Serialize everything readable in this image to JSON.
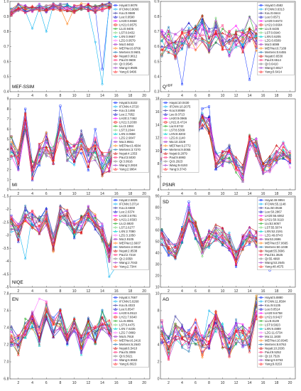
{
  "method_names": [
    "Hayat",
    "IFCNN",
    "Kou",
    "Lee",
    "LH20",
    "LH21",
    "Liu",
    "LST",
    "LXN",
    "LZG",
    "Ma",
    "MEFNet",
    "Mertens",
    "Nejati",
    "Paul",
    "Qi",
    "Wang",
    "Yang"
  ],
  "series_colors": [
    "#1f3fff",
    "#00b0f0",
    "#2c2c9a",
    "#0000c8",
    "#ff00ff",
    "#ee1111",
    "#22aa22",
    "#66cc66",
    "#00d0d0",
    "#ff66ff",
    "#aa44cc",
    "#ff7700",
    "#1f77b4",
    "#cc0000",
    "#ff4488",
    "#777777",
    "#9933cc",
    "#ff2222"
  ],
  "x_ticks": [
    2,
    4,
    6,
    8,
    10,
    12,
    14,
    16,
    18,
    20
  ],
  "chart_data": [
    {
      "type": "line",
      "metric": "MEF-SSIM",
      "corner_label": "MEF-SSIM",
      "corner": "bottom-left",
      "ylim": [
        0.4,
        1.0
      ],
      "yticks": [
        0.4,
        0.5,
        0.6,
        0.7,
        0.8,
        0.9,
        1.0
      ],
      "legend": "top-right",
      "legend_entries": [
        "Hayat:0.9078",
        "IFCNN:0.9066",
        "Kou:0.9588",
        "Lee:0.9590",
        "LH20:0.9658",
        "LH21:0.9575",
        "Liu:0.9405",
        "LST:0.9432",
        "LXN:0.9667",
        "LZG:0.9579",
        "Ma:0.9453",
        "MEFNet:0.8766",
        "Mertens:0.9601",
        "Nejati:0.9612",
        "Paul:0.9608",
        "Qi:0.9545",
        "Wang:0.9505",
        "Yang:0.9496"
      ],
      "base": [
        0.93,
        0.96,
        0.95,
        0.95,
        0.96,
        0.95,
        0.97,
        0.96,
        0.96,
        0.95,
        0.97,
        0.96,
        0.95,
        0.96,
        0.97,
        0.96,
        0.95,
        0.96,
        0.96,
        0.95
      ],
      "amp": 0.025,
      "spikes": [
        {
          "series": 1,
          "x": 4,
          "y": 0.82
        },
        {
          "series": 1,
          "x": 6,
          "y": 0.8
        },
        {
          "series": 1,
          "x": 13,
          "y": 0.73
        },
        {
          "series": 1,
          "x": 14,
          "y": 0.45
        },
        {
          "series": 0,
          "x": 14,
          "y": 0.55
        },
        {
          "series": 11,
          "x": 9,
          "y": 0.85
        }
      ]
    },
    {
      "type": "line",
      "metric": "Q^AB/F",
      "corner_label": "Q",
      "corner_sup": "AB/F",
      "corner": "bottom-left",
      "ylim": [
        0.3,
        0.9
      ],
      "yticks": [
        0.3,
        0.4,
        0.5,
        0.6,
        0.7,
        0.8,
        0.9
      ],
      "legend": "top-right",
      "legend_entries": [
        "Hayat:0.4582",
        "IFCNN:0.6313",
        "Kou:0.6644",
        "Lee:0.6571",
        "LH20:0.6673",
        "LH21:0.6604",
        "Liu:0.6435",
        "LST:0.6640",
        "LXN:0.6205",
        "LZG:0.6509",
        "Ma:0.6089",
        "MEFNet:0.7189",
        "Mertens:0.6455",
        "Nejati:0.6530",
        "Paul:0.6514",
        "Qi:0.6410",
        "Wang:0.6517",
        "Yang:0.6414"
      ],
      "base": [
        0.62,
        0.64,
        0.6,
        0.66,
        0.68,
        0.65,
        0.72,
        0.64,
        0.7,
        0.66,
        0.62,
        0.68,
        0.63,
        0.72,
        0.65,
        0.62,
        0.6,
        0.66,
        0.65,
        0.62
      ],
      "amp": 0.09,
      "spikes": [
        {
          "series": 0,
          "x": 4,
          "y": 0.35
        },
        {
          "series": 0,
          "x": 14,
          "y": 0.38
        },
        {
          "series": 0,
          "x": 19,
          "y": 0.42
        }
      ]
    },
    {
      "type": "line",
      "metric": "MI",
      "corner_label": "MI",
      "corner": "bottom-left",
      "ylim": [
        0,
        9
      ],
      "yticks": [
        0,
        1,
        2,
        3,
        4,
        5,
        6,
        7,
        8,
        9
      ],
      "legend": "top-right",
      "legend_entries": [
        "Hayat:5.5102",
        "IFCNN:4.3720",
        "Kou:3.1466",
        "Lee:2.7952",
        "LH20:2.7462",
        "LH21:3.2038",
        "Liu:3.1984",
        "LST:3.2044",
        "LXN:3.0658",
        "LZG:2.9047",
        "Ma:3.9551",
        "MEFNet:3.4584",
        "Mertens:3.7270",
        "Nejati:4.1353",
        "Paul:3.5030",
        "Qi:3.9916",
        "Wang:3.2824",
        "Yang:2.9964"
      ],
      "base": [
        4.2,
        3.0,
        6.8,
        2.0,
        3.5,
        4.5,
        3.2,
        6.0,
        3.8,
        3.5,
        4.8,
        3.0,
        4.0,
        2.5,
        3.0,
        4.8,
        3.2,
        3.0,
        3.5,
        2.8
      ],
      "amp": 1.2,
      "spikes": [
        {
          "series": 0,
          "x": 3,
          "y": 8.0
        },
        {
          "series": 0,
          "x": 8,
          "y": 8.3
        },
        {
          "series": 0,
          "x": 13,
          "y": 6.0
        },
        {
          "series": 0,
          "x": 16,
          "y": 7.0
        }
      ]
    },
    {
      "type": "line",
      "metric": "PSNR",
      "corner_label": "PSNR",
      "corner": "bottom-left",
      "ylim": [
        4,
        18
      ],
      "yticks": [
        4,
        6,
        8,
        10,
        12,
        14,
        16,
        18
      ],
      "legend": "top-left",
      "legend_entries": [
        "Hayat:10.0430",
        "IFCNN:10.2075",
        "Kou:8.8959",
        "Lee:9.0713",
        "LH20:9.0965",
        "LH21:8.4724",
        "Liu:8.6742",
        "LST:8.5309",
        "LXN:8.8203",
        "LZG:9.1140",
        "Ma:10.3328",
        "MEFNet:9.2772",
        "Mertens:9.0065",
        "Nejati:9.2879",
        "Paul:9.6993",
        "Qi:9.2923",
        "Wang:9.6193",
        "Yang:9.3743"
      ],
      "base": [
        9.5,
        8.5,
        9.0,
        11.0,
        8.0,
        12.0,
        14.5,
        14.0,
        8.5,
        9.0,
        9.5,
        8.0,
        6.5,
        11.5,
        10.5,
        7.5,
        8.0,
        9.5,
        10.0,
        8.5
      ],
      "amp": 1.4,
      "spikes": [
        {
          "series": 0,
          "x": 7,
          "y": 16.5
        },
        {
          "series": 0,
          "x": 8,
          "y": 16.8
        }
      ]
    },
    {
      "type": "line",
      "metric": "NIQE",
      "corner_label": "NIQE",
      "corner": "bottom-left",
      "ylim": [
        -5.0,
        -1.5
      ],
      "yticks": [
        -5.0,
        -4.5,
        -4.0,
        -3.5,
        -3.0,
        -2.5,
        -2.0,
        -1.5
      ],
      "legend": "top-right",
      "legend_entries": [
        "Hayat:2.6826",
        "IFCNN:3.3714",
        "Kou:2.6669",
        "Lee:2.6374",
        "LH20:2.6781",
        "LH21:2.6593",
        "Liu:2.6920",
        "LST:2.6277",
        "LXN:2.7080",
        "LZG:3.1050",
        "Ma:2.9105",
        "MEFNet:2.6607",
        "Mertens:2.9018",
        "Nejati:2.8538",
        "Paul:2.7218",
        "Qi:2.9358",
        "Wang:2.7043",
        "Yang:2.7344"
      ],
      "base": [
        -2.6,
        -2.9,
        -2.2,
        -2.4,
        -2.6,
        -2.3,
        -3.3,
        -2.2,
        -2.3,
        -2.8,
        -2.6,
        -2.2,
        -2.5,
        -2.9,
        -3.7,
        -2.5,
        -2.8,
        -2.4,
        -2.6,
        -2.5
      ],
      "amp": 0.35,
      "spikes": [
        {
          "series": 1,
          "x": 3,
          "y": -3.9
        },
        {
          "series": 1,
          "x": 15,
          "y": -4.6
        },
        {
          "series": 1,
          "x": 16,
          "y": -4.2
        }
      ]
    },
    {
      "type": "line",
      "metric": "SD",
      "corner_label": "SD",
      "corner": "top-left",
      "ylim": [
        10,
        90
      ],
      "yticks": [
        10,
        20,
        30,
        40,
        50,
        60,
        70,
        80,
        90
      ],
      "legend": "top-right",
      "legend_entries": [
        "Hayat:49.9994",
        "IFCNN:55.1148",
        "Kou:50.0648",
        "Lee:50.2867",
        "LH20:55.6062",
        "LH21:50.9119",
        "Liu:52.6057",
        "LST:55.5074",
        "LXN:52.2191",
        "LZG:49.8743",
        "Ma:53.2696",
        "MEFNet:57.0665",
        "Mertens:50.1038",
        "Nejati:55.3696",
        "Paul:51.3625",
        "Qi:55.4990",
        "Wang:53.2645",
        "Yang:48.4575"
      ],
      "base": [
        55,
        45,
        40,
        55,
        75,
        60,
        45,
        52,
        58,
        55,
        50,
        35,
        50,
        55,
        52,
        40,
        58,
        52,
        50,
        55
      ],
      "amp": 8,
      "spikes": [
        {
          "series": 0,
          "x": 5,
          "y": 85
        },
        {
          "series": 0,
          "x": 17,
          "y": 25
        },
        {
          "series": 0,
          "x": 12,
          "y": 28
        }
      ]
    },
    {
      "type": "line",
      "metric": "EN",
      "corner_label": "EN",
      "corner": "top-left",
      "ylim": [
        6.8,
        7.8
      ],
      "yticks": [
        6.8,
        7.0,
        7.2,
        7.4,
        7.6,
        7.8
      ],
      "legend": "top-right",
      "legend_entries": [
        "Hayat:4.7667",
        "IFCNN:5.0268",
        "Kou:6.4023",
        "Lee:6.8547",
        "LH20:6.0513",
        "LH21:7.6640",
        "Liu:6.8081",
        "LST:6.4475",
        "LXN:7.6235",
        "LZG:7.0869",
        "Ma:5.7918",
        "MEFNet:6.2416",
        "Mertens:6.2640",
        "Nejati:6.5410",
        "Paul:5.3089",
        "Qi:6.5621",
        "Wang:6.5563",
        "Yang:6.8023"
      ],
      "base": [
        7.3,
        7.2,
        7.4,
        7.5,
        7.3,
        7.6,
        7.4,
        7.5,
        7.3,
        7.4,
        7.2,
        7.4,
        7.3,
        7.5,
        7.4,
        7.2,
        7.3,
        7.4,
        7.3,
        7.2
      ],
      "amp": 0.12,
      "spikes": [
        {
          "series": 9,
          "x": 5,
          "y": 7.74
        },
        {
          "series": 9,
          "x": 4,
          "y": 7.55
        }
      ]
    },
    {
      "type": "line",
      "metric": "AG",
      "corner_label": "AG",
      "corner": "top-left",
      "ylim": [
        0,
        10
      ],
      "yticks": [
        0,
        2,
        4,
        6,
        8,
        10
      ],
      "legend": "top-right",
      "legend_entries": [
        "Hayat:5.8880",
        "IFCNN:11.8504",
        "Kou:9.5135",
        "Lee:8.8514",
        "LH20:9.6758",
        "LH21:8.9427",
        "Liu:8.8139",
        "LST:9.5823",
        "LXN:9.4889",
        "LZG:11.6734",
        "Ma:11.1830",
        "MEFNet:10.0945",
        "Mertens:8.8763",
        "Nejati:10.2636",
        "Paul:9.5252",
        "Qi:10.7526",
        "Wang:9.5763",
        "Yang:9.8153"
      ],
      "base": [
        5.5,
        3.5,
        6.0,
        5.0,
        4.5,
        5.5,
        4.0,
        5.0,
        6.5,
        5.0,
        4.0,
        5.5,
        5.0,
        4.5,
        8.5,
        5.5,
        4.5,
        5.0,
        5.5,
        5.0
      ],
      "amp": 1.5,
      "spikes": [
        {
          "series": 1,
          "x": 15,
          "y": 9.5
        },
        {
          "series": 1,
          "x": 8,
          "y": 8.0
        }
      ]
    }
  ]
}
